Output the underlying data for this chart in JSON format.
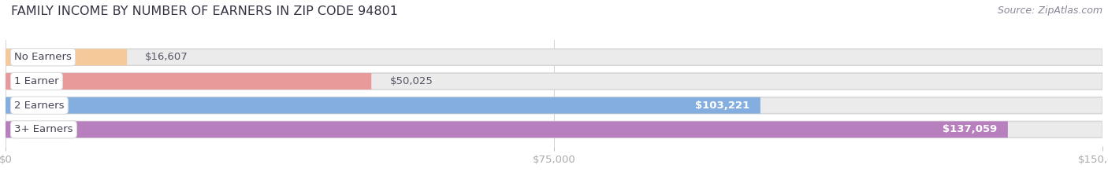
{
  "title": "FAMILY INCOME BY NUMBER OF EARNERS IN ZIP CODE 94801",
  "source": "Source: ZipAtlas.com",
  "categories": [
    "No Earners",
    "1 Earner",
    "2 Earners",
    "3+ Earners"
  ],
  "values": [
    16607,
    50025,
    103221,
    137059
  ],
  "bar_colors": [
    "#f5c99a",
    "#e8999a",
    "#85aee0",
    "#b87fbe"
  ],
  "bar_bg_color": "#ebebeb",
  "value_labels": [
    "$16,607",
    "$50,025",
    "$103,221",
    "$137,059"
  ],
  "val_label_inside": [
    false,
    false,
    true,
    true
  ],
  "xlim": [
    0,
    150000
  ],
  "xticks": [
    0,
    75000,
    150000
  ],
  "xtick_labels": [
    "$0",
    "$75,000",
    "$150,000"
  ],
  "title_fontsize": 11.5,
  "source_fontsize": 9,
  "label_fontsize": 9.5,
  "val_label_fontsize": 9.5,
  "background_color": "#ffffff"
}
